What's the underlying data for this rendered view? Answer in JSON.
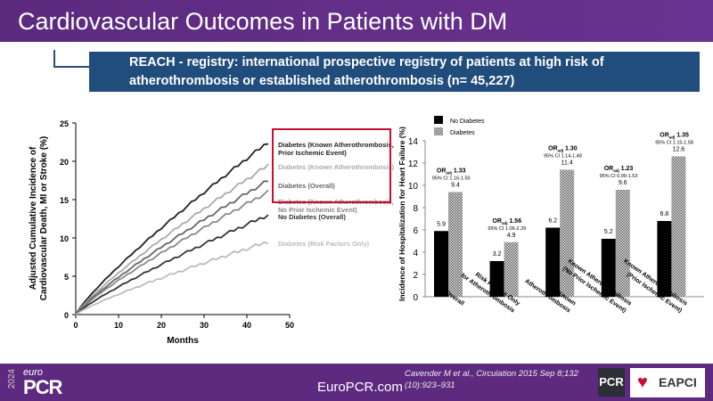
{
  "title": "Cardiovascular Outcomes in Patients with DM",
  "subtitle": "REACH - registry:  international prospective registry of patients at high risk of atherothrombosis or established atherothrombosis (n= 45,227)",
  "chart_data": [
    {
      "type": "line",
      "xlabel": "Months",
      "ylabel": "Adjusted Cumulative Incidence of Cardiovascular Death, MI or Stroke (%)",
      "xlim": [
        0,
        50
      ],
      "ylim": [
        0,
        25
      ],
      "xticks": [
        "0",
        "10",
        "20",
        "30",
        "40",
        "50"
      ],
      "yticks": [
        "0",
        "5",
        "10",
        "15",
        "20",
        "25"
      ],
      "series": [
        {
          "name": "Diabetes (Known Atherothrombosis, Prior Ischemic Event)",
          "color": "#222222",
          "end": 22.5
        },
        {
          "name": "Diabetes (Known Atherothrombosis)",
          "color": "#aaaaaa",
          "end": 19.5
        },
        {
          "name": "Diabetes (Overall)",
          "color": "#666666",
          "end": 17.5
        },
        {
          "name": "Diabetes (Known Atherothrombosis, No Prior Ischemic Event)",
          "color": "#888888",
          "end": 16
        },
        {
          "name": "No Diabetes (Overall)",
          "color": "#333333",
          "end": 13
        },
        {
          "name": "Diabetes (Risk Factors Only)",
          "color": "#bbbbbb",
          "end": 9.5
        }
      ],
      "x": [
        0,
        45
      ]
    },
    {
      "type": "bar",
      "ylabel": "Incidence of Hospitalization for Heart Failure (%)",
      "ylim": [
        0,
        14
      ],
      "yticks": [
        "0",
        "2",
        "4",
        "6",
        "8",
        "10",
        "12",
        "14"
      ],
      "categories": [
        "Overall",
        "Risk Factors Only for Atherothrombosis",
        "Known Atherothrombosis",
        "Known Atherothrombosis (No Prior Ischemic Event)",
        "Known Atherothrombosis (Prior Ischemic Event)"
      ],
      "series": [
        {
          "name": "No Diabetes",
          "values": [
            5.9,
            3.2,
            6.2,
            5.2,
            6.8
          ]
        },
        {
          "name": "Diabetes",
          "values": [
            9.4,
            4.9,
            11.4,
            9.6,
            12.6
          ]
        }
      ],
      "annotations": [
        {
          "or": "1.33",
          "ci": "95% CI 1.16-1.50"
        },
        {
          "or": "1.56",
          "ci": "95% CI 1.06-2.29"
        },
        {
          "or": "1.30",
          "ci": "95% CI 1.14-1.48"
        },
        {
          "or": "1.23",
          "ci": "95% CI 0.99-1.53"
        },
        {
          "or": "1.35",
          "ci": "95% CI 1.15-1.58"
        }
      ],
      "legend": "top-left"
    }
  ],
  "footer": {
    "site": "EuroPCR.com",
    "citation": "Cavender M et al., Circulation 2015 Sep 8;132 (10):923–931",
    "logo_year": "2024",
    "logo_euro": "euro",
    "logo_pcr": "PCR",
    "pcr": "PCR",
    "eapci": "EAPCI"
  }
}
